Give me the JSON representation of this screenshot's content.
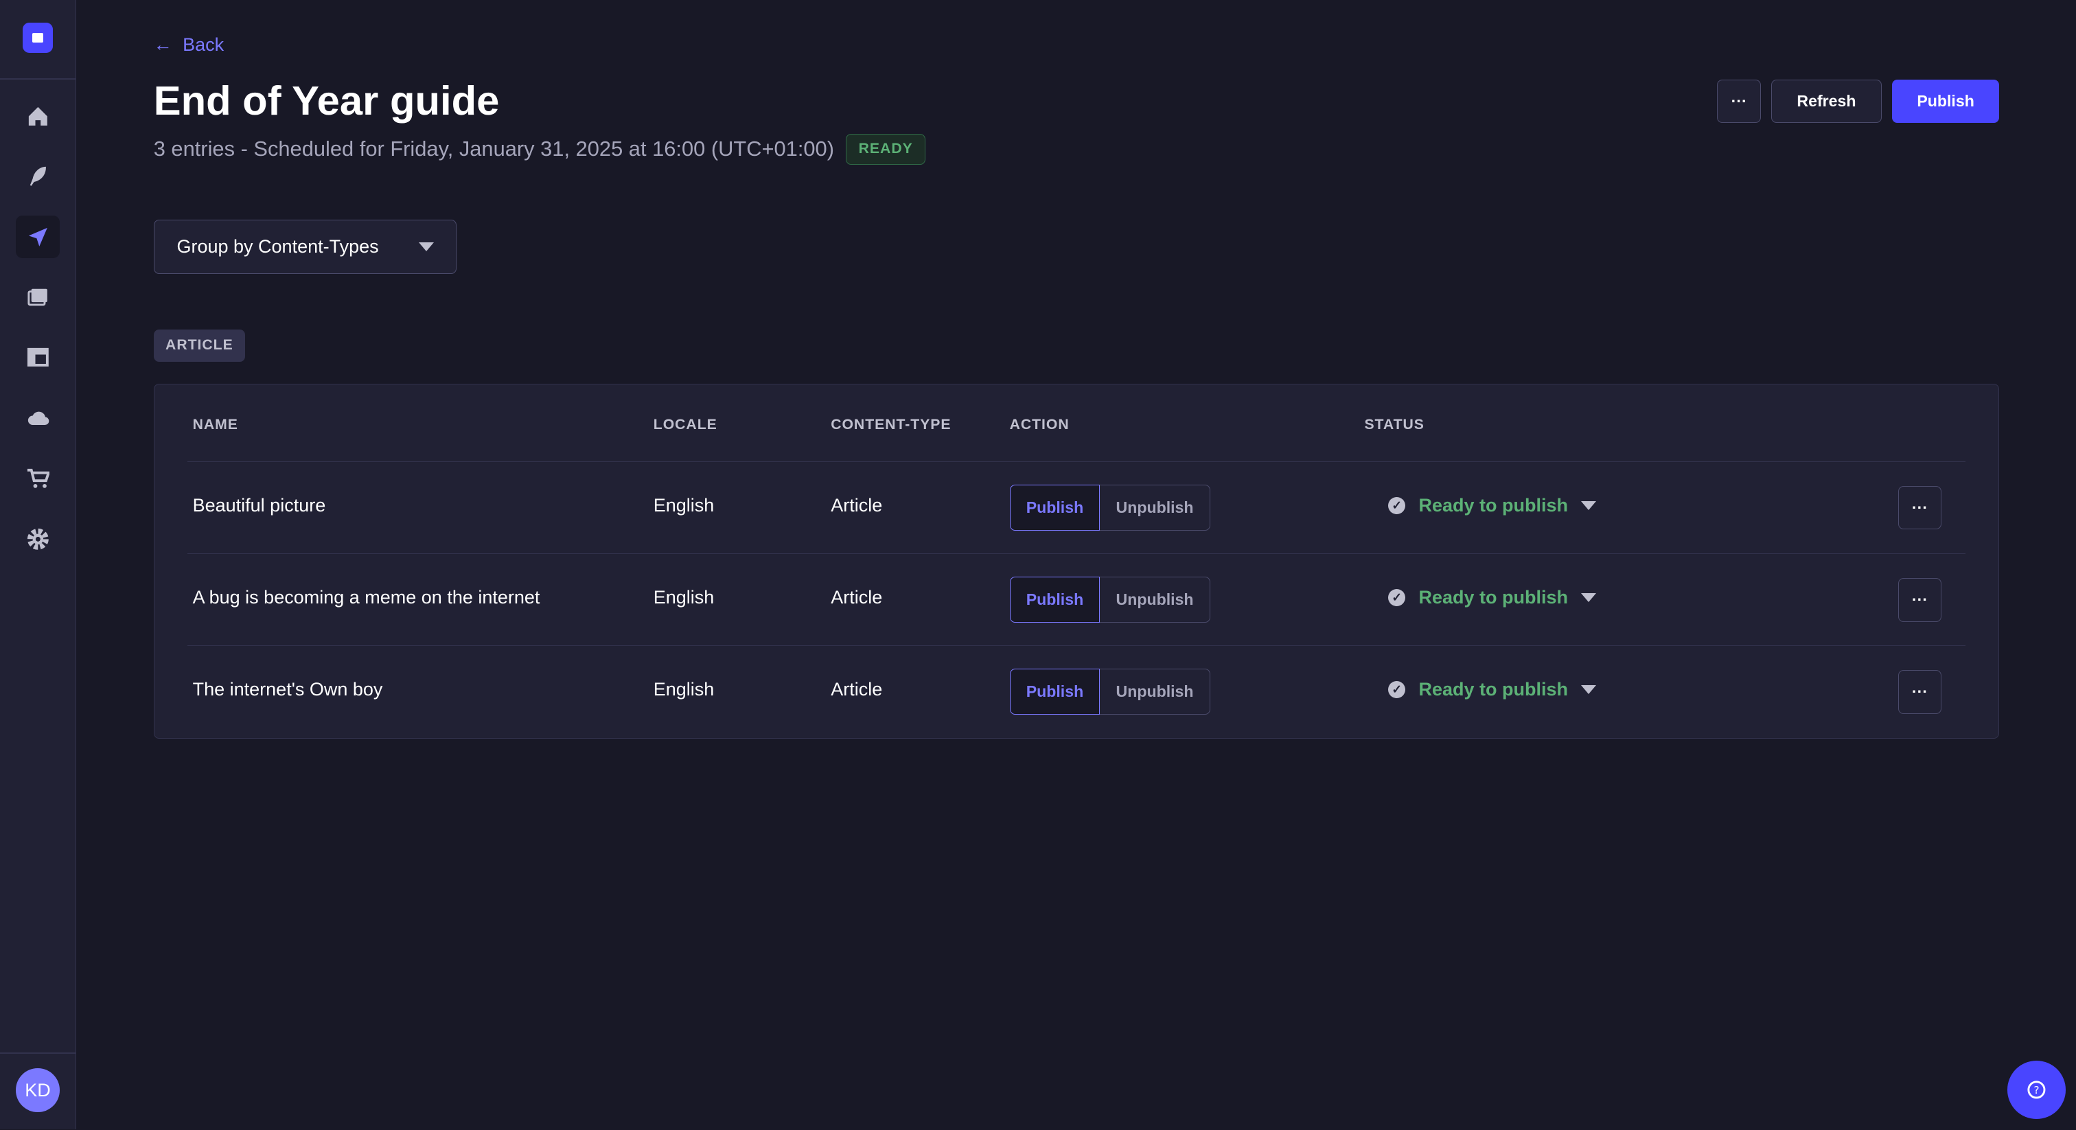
{
  "sidebar": {
    "items": [
      "home-icon",
      "feather-icon",
      "paper-plane-icon",
      "images-icon",
      "layout-icon",
      "cloud-icon",
      "cart-icon",
      "gear-icon"
    ],
    "active": 2,
    "avatar": "KD"
  },
  "header": {
    "back_label": "Back",
    "title": "End of Year guide",
    "subtitle": "3 entries - Scheduled for Friday, January 31, 2025 at 16:00 (UTC+01:00)",
    "status_badge": "READY",
    "more_label": "···",
    "refresh_label": "Refresh",
    "publish_label": "Publish"
  },
  "group_select": {
    "value": "Group by Content-Types"
  },
  "group_tag": "ARTICLE",
  "table": {
    "columns": [
      "NAME",
      "LOCALE",
      "CONTENT-TYPE",
      "ACTION",
      "STATUS"
    ],
    "rows": [
      {
        "name": "Beautiful picture",
        "locale": "English",
        "content_type": "Article",
        "publish": "Publish",
        "unpublish": "Unpublish",
        "status": "Ready to publish",
        "more": "···"
      },
      {
        "name": "A bug is becoming a meme on the internet",
        "locale": "English",
        "content_type": "Article",
        "publish": "Publish",
        "unpublish": "Unpublish",
        "status": "Ready to publish",
        "more": "···"
      },
      {
        "name": "The internet's Own boy",
        "locale": "English",
        "content_type": "Article",
        "publish": "Publish",
        "unpublish": "Unpublish",
        "status": "Ready to publish",
        "more": "···"
      }
    ]
  },
  "colors": {
    "accent": "#4945ff",
    "link": "#7b79ff",
    "success": "#5cb176",
    "background": "#181826",
    "surface": "#212134"
  }
}
